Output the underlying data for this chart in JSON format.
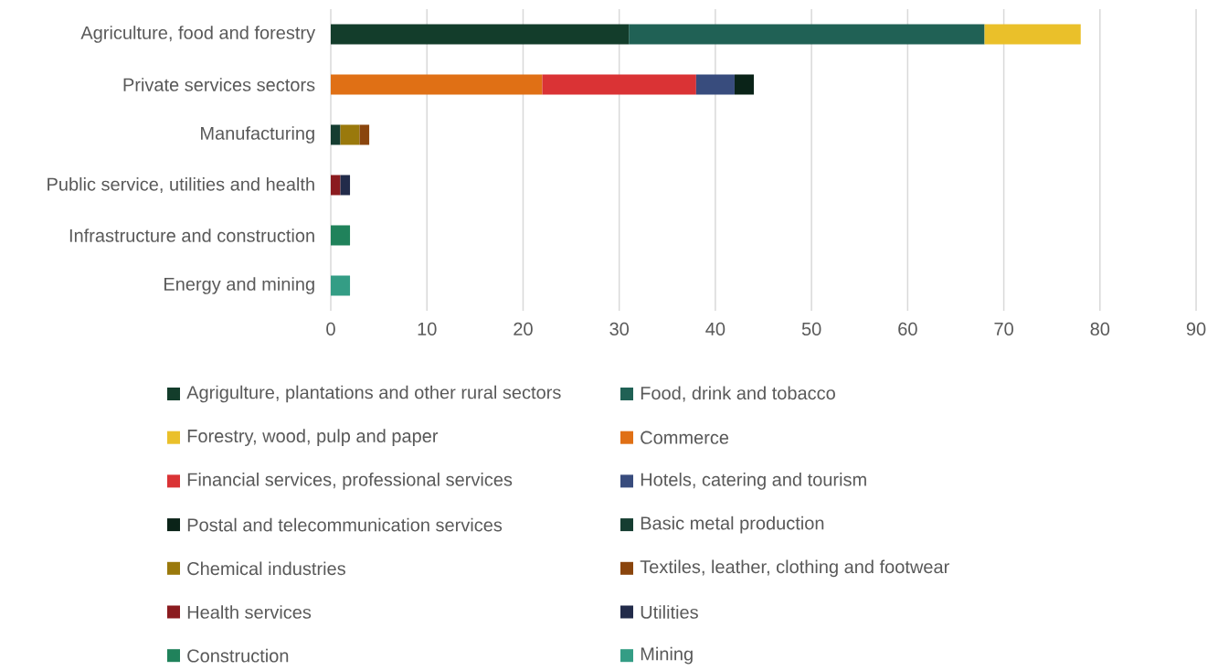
{
  "chart_data": {
    "type": "bar",
    "orientation": "horizontal",
    "stacked": true,
    "grid": "x",
    "legend": "bottom",
    "categories": [
      "Agriculture, food and forestry",
      "Private services sectors",
      "Manufacturing",
      "Public service, utilities and health",
      "Infrastructure and construction",
      "Energy and mining"
    ],
    "xlim": [
      0,
      90
    ],
    "xticks": [
      0,
      10,
      20,
      30,
      40,
      50,
      60,
      70,
      80,
      90
    ],
    "series": [
      {
        "name": "Agrigulture, plantations and other rural sectors",
        "color": "#133d2b",
        "values": [
          31,
          null,
          null,
          null,
          null,
          null
        ]
      },
      {
        "name": "Food, drink and tobacco",
        "color": "#206155",
        "values": [
          37,
          null,
          null,
          null,
          null,
          null
        ]
      },
      {
        "name": "Forestry, wood, pulp and paper",
        "color": "#eac02a",
        "values": [
          10,
          null,
          null,
          null,
          null,
          null
        ]
      },
      {
        "name": "Commerce",
        "color": "#e07015",
        "values": [
          null,
          22,
          null,
          null,
          null,
          null
        ]
      },
      {
        "name": "Financial services, professional services",
        "color": "#da3335",
        "values": [
          null,
          16,
          null,
          null,
          null,
          null
        ]
      },
      {
        "name": "Hotels, catering and tourism",
        "color": "#384c7d",
        "values": [
          null,
          4,
          null,
          null,
          null,
          null
        ]
      },
      {
        "name": "Postal and telecommunication services",
        "color": "#0a2318",
        "values": [
          null,
          2,
          null,
          null,
          null,
          null
        ]
      },
      {
        "name": "Basic metal production",
        "color": "#153d31",
        "values": [
          null,
          null,
          1,
          null,
          null,
          null
        ]
      },
      {
        "name": "Chemical industries",
        "color": "#9a790c",
        "values": [
          null,
          null,
          2,
          null,
          null,
          null
        ]
      },
      {
        "name": "Textiles, leather, clothing and footwear",
        "color": "#8a450d",
        "values": [
          null,
          null,
          1,
          null,
          null,
          null
        ]
      },
      {
        "name": "Health services",
        "color": "#8b1b1f",
        "values": [
          null,
          null,
          null,
          1,
          null,
          null
        ]
      },
      {
        "name": "Utilities",
        "color": "#222b4a",
        "values": [
          null,
          null,
          null,
          1,
          null,
          null
        ]
      },
      {
        "name": "Construction",
        "color": "#20825b",
        "values": [
          null,
          null,
          null,
          null,
          2,
          null
        ]
      },
      {
        "name": "Mining",
        "color": "#349d85",
        "values": [
          null,
          null,
          null,
          null,
          null,
          2
        ]
      }
    ]
  }
}
